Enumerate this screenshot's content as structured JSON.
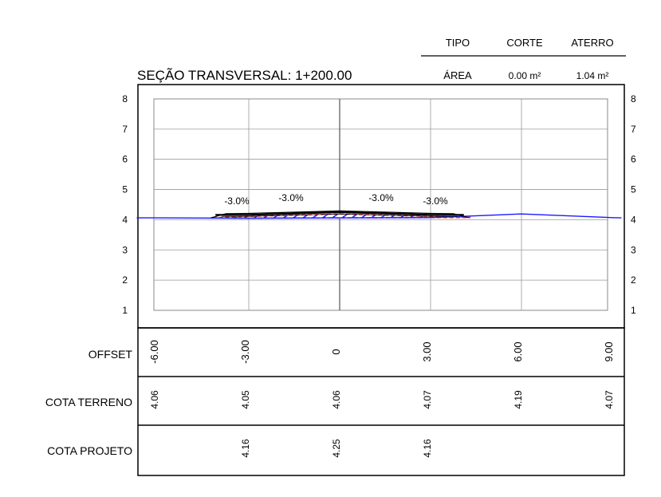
{
  "title": "SEÇÃO TRANSVERSAL: 1+200.00",
  "summary_table": {
    "headers": [
      "TIPO",
      "CORTE",
      "ATERRO"
    ],
    "row": [
      "ÁREA",
      "0.00 m²",
      "1.04 m²"
    ]
  },
  "y_axis": {
    "min": 1,
    "max": 8,
    "ticks": [
      "1",
      "2",
      "3",
      "4",
      "5",
      "6",
      "7",
      "8"
    ]
  },
  "slope_labels": [
    "-3.0%",
    "-3.0%",
    "-3.0%",
    "-3.0%"
  ],
  "table": {
    "row_labels": {
      "offset": "OFFSET",
      "cota_terreno": "COTA TERRENO",
      "cota_projeto": "COTA PROJETO"
    },
    "offset": [
      "-6.00",
      "-3.00",
      "0",
      "3.00",
      "6.00",
      "9.00"
    ],
    "cota_terreno": [
      "4.06",
      "4.05",
      "4.06",
      "4.07",
      "4.19",
      "4.07"
    ],
    "cota_projeto": [
      "",
      "4.16",
      "4.25",
      "4.16",
      "",
      ""
    ]
  },
  "chart_data": {
    "type": "line",
    "title": "SEÇÃO TRANSVERSAL: 1+200.00",
    "xlabel": "",
    "ylabel": "",
    "xlim": [
      -6.7,
      9.3
    ],
    "ylim": [
      1,
      8
    ],
    "grid": true,
    "series": [
      {
        "x": [
          -6.7,
          -6.0,
          -3.0,
          0.0,
          3.0,
          6.0,
          9.0,
          9.3
        ],
        "y": [
          4.06,
          4.06,
          4.05,
          4.06,
          4.07,
          4.19,
          4.07,
          4.06
        ]
      },
      {
        "x": [
          -4.1,
          -3.0,
          0.0,
          3.0,
          4.1
        ],
        "y": [
          4.16,
          4.16,
          4.25,
          4.16,
          4.16
        ]
      }
    ],
    "colors": {
      "terrain": "#1a1aff",
      "design": "#000000",
      "fill_hatch": "#1a1aff",
      "fill_outline": "#ff0000"
    }
  }
}
